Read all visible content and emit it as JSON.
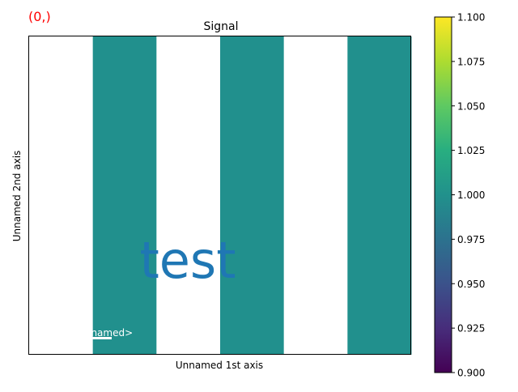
{
  "index_label": "(0,)",
  "colors": {
    "index_label": "#ff0000",
    "text_overlay": "#1f77b4",
    "stripe": "#21908d",
    "masked": "#ffffff",
    "frame": "#000000",
    "scalebar": "#ffffff"
  },
  "scalebar_label": "<Unnamed>",
  "chart_data": {
    "type": "heatmap",
    "title": "Signal",
    "xlabel": "Unnamed 1st axis",
    "ylabel": "Unnamed 2nd axis",
    "columns": 6,
    "column_values": [
      null,
      1.0,
      null,
      1.0,
      null,
      1.0
    ],
    "annotation": "test",
    "colorbar": {
      "colormap": "viridis",
      "range": [
        0.9,
        1.1
      ],
      "ticks": [
        "0.900",
        "0.925",
        "0.950",
        "0.975",
        "1.000",
        "1.025",
        "1.050",
        "1.075",
        "1.100"
      ]
    },
    "grid": false
  }
}
